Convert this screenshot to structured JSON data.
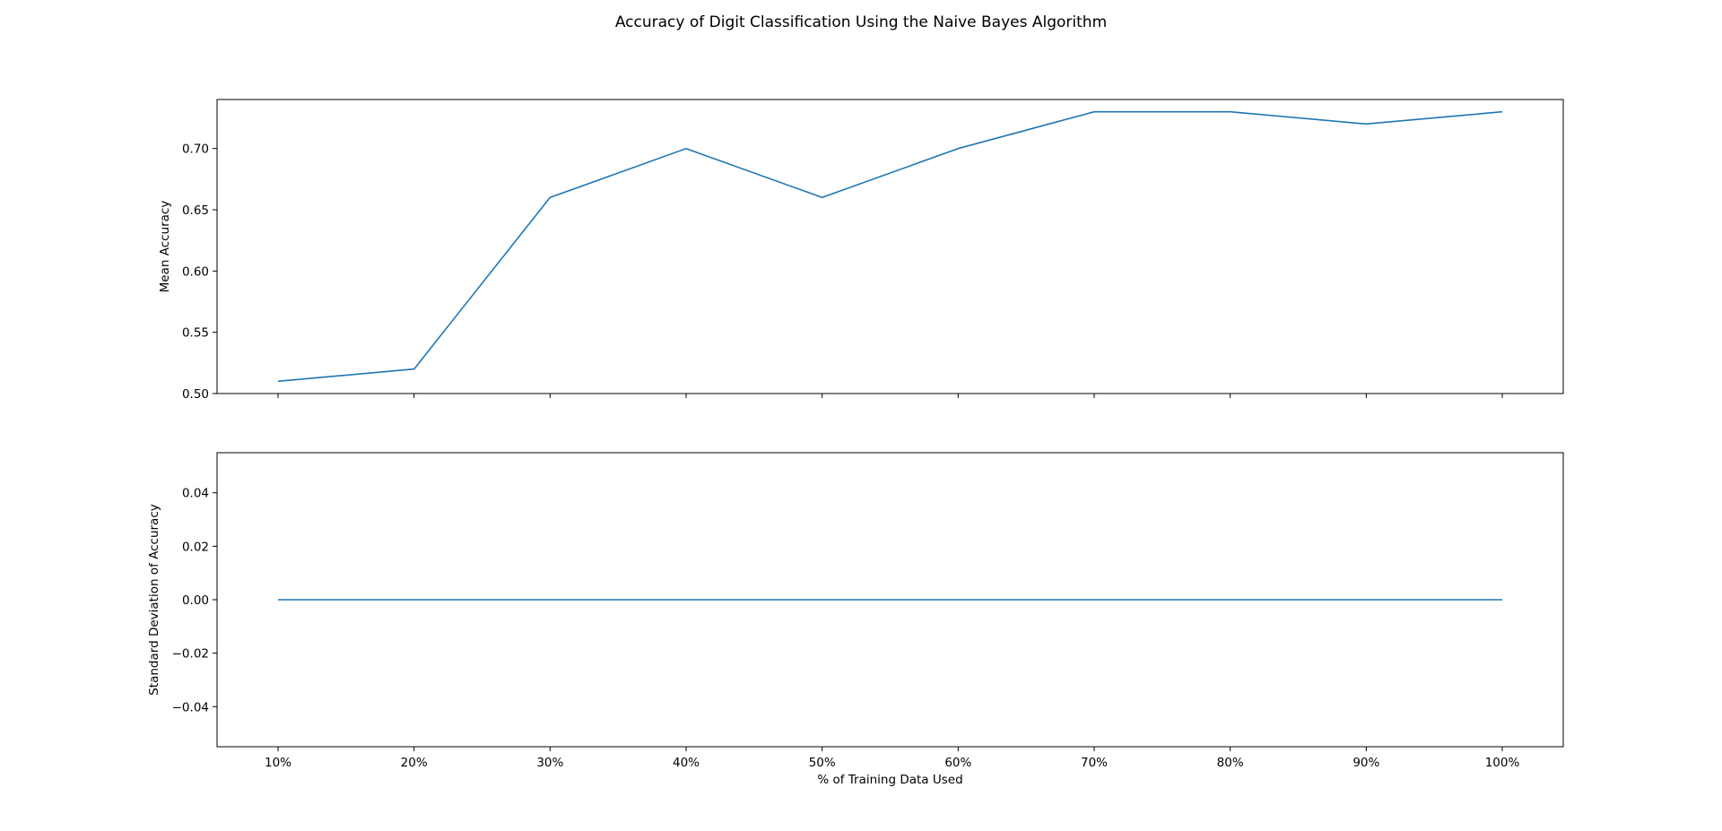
{
  "figure": {
    "title": "Accuracy of Digit Classification Using the Naive Bayes Algorithm",
    "line_color": "#1f77b4"
  },
  "chart_data": [
    {
      "type": "line",
      "title": "",
      "xlabel": "",
      "ylabel": "Mean Accuracy",
      "categories": [
        "10%",
        "20%",
        "30%",
        "40%",
        "50%",
        "60%",
        "70%",
        "80%",
        "90%",
        "100%"
      ],
      "x": [
        10,
        20,
        30,
        40,
        50,
        60,
        70,
        80,
        90,
        100
      ],
      "series": [
        {
          "values": [
            0.51,
            0.52,
            0.66,
            0.7,
            0.66,
            0.7,
            0.73,
            0.73,
            0.72,
            0.73
          ]
        }
      ],
      "ylim": [
        0.5,
        0.74
      ],
      "yticks": [
        0.5,
        0.55,
        0.6,
        0.65,
        0.7
      ],
      "ytick_labels": [
        "0.50",
        "0.55",
        "0.60",
        "0.65",
        "0.70"
      ],
      "show_xtick_labels": false,
      "grid": false
    },
    {
      "type": "line",
      "title": "",
      "xlabel": "% of Training Data Used",
      "ylabel": "Standard Deviation of Accuracy",
      "categories": [
        "10%",
        "20%",
        "30%",
        "40%",
        "50%",
        "60%",
        "70%",
        "80%",
        "90%",
        "100%"
      ],
      "x": [
        10,
        20,
        30,
        40,
        50,
        60,
        70,
        80,
        90,
        100
      ],
      "series": [
        {
          "values": [
            0,
            0,
            0,
            0,
            0,
            0,
            0,
            0,
            0,
            0
          ]
        }
      ],
      "ylim": [
        -0.055,
        0.055
      ],
      "yticks": [
        -0.04,
        -0.02,
        0.0,
        0.02,
        0.04
      ],
      "ytick_labels": [
        "−0.04",
        "−0.02",
        "0.00",
        "0.02",
        "0.04"
      ],
      "show_xtick_labels": true,
      "grid": false
    }
  ]
}
